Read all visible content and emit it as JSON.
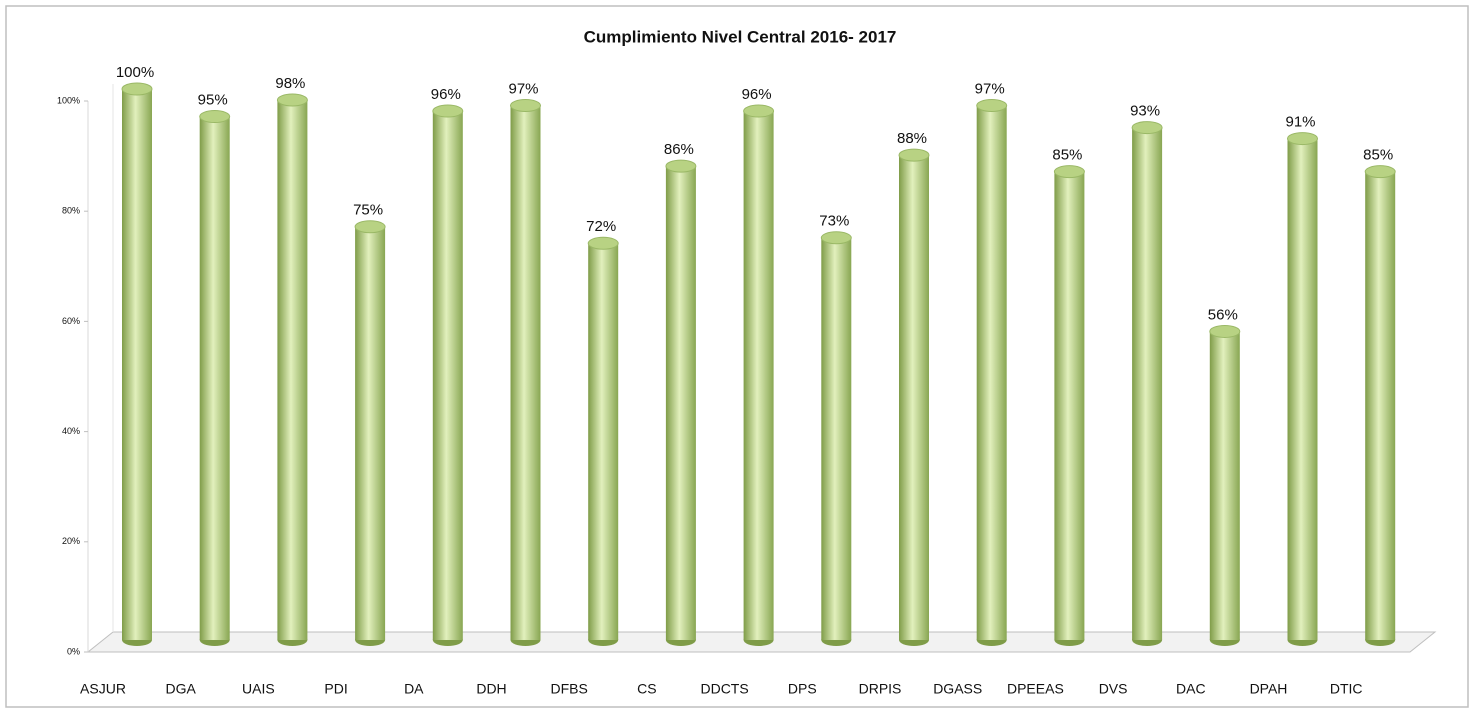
{
  "chart_data": {
    "type": "bar",
    "title": "Cumplimiento Nivel Central 2016- 2017",
    "categories": [
      "ASJUR",
      "DGA",
      "UAIS",
      "PDI",
      "DA",
      "DDH",
      "DFBS",
      "CS",
      "DDCTS",
      "DPS",
      "DRPIS",
      "DGASS",
      "DPEEAS",
      "DVS",
      "DAC",
      "DPAH",
      "DTIC"
    ],
    "values": [
      100,
      95,
      98,
      75,
      96,
      97,
      72,
      86,
      96,
      73,
      88,
      97,
      85,
      93,
      56,
      91,
      85
    ],
    "value_labels": [
      "100%",
      "95%",
      "98%",
      "75%",
      "96%",
      "97%",
      "72%",
      "86%",
      "96%",
      "73%",
      "88%",
      "97%",
      "85%",
      "93%",
      "56%",
      "91%",
      "85%"
    ],
    "color": "#b8d283",
    "ylim": [
      0,
      100
    ],
    "yticks": [
      {
        "value": 0,
        "label": "0%"
      },
      {
        "value": 20,
        "label": "20%"
      },
      {
        "value": 40,
        "label": "40%"
      },
      {
        "value": 60,
        "label": "60%"
      },
      {
        "value": 80,
        "label": "80%"
      },
      {
        "value": 100,
        "label": "100%"
      }
    ],
    "grid": false
  }
}
